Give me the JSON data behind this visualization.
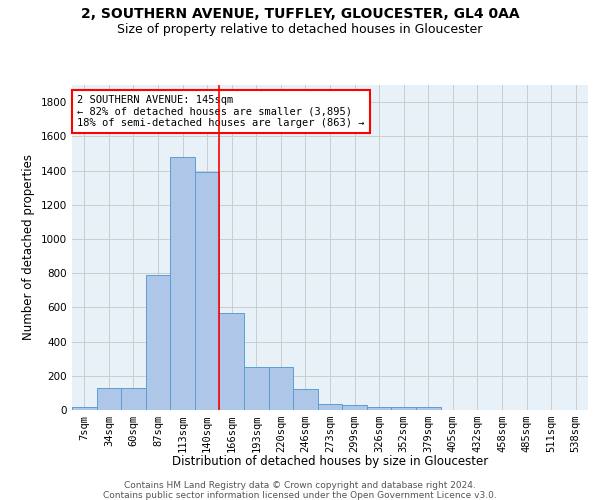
{
  "title1": "2, SOUTHERN AVENUE, TUFFLEY, GLOUCESTER, GL4 0AA",
  "title2": "Size of property relative to detached houses in Gloucester",
  "xlabel": "Distribution of detached houses by size in Gloucester",
  "ylabel": "Number of detached properties",
  "bar_values": [
    15,
    130,
    130,
    790,
    1480,
    1390,
    570,
    250,
    250,
    120,
    35,
    30,
    20,
    15,
    20,
    0,
    0,
    0,
    0,
    0,
    0
  ],
  "bar_labels": [
    "7sqm",
    "34sqm",
    "60sqm",
    "87sqm",
    "113sqm",
    "140sqm",
    "166sqm",
    "193sqm",
    "220sqm",
    "246sqm",
    "273sqm",
    "299sqm",
    "326sqm",
    "352sqm",
    "379sqm",
    "405sqm",
    "432sqm",
    "458sqm",
    "485sqm",
    "511sqm",
    "538sqm"
  ],
  "bar_color": "#aec6e8",
  "bar_edge_color": "#5a9fd4",
  "vline_x": 5.5,
  "vline_color": "red",
  "annotation_text": "2 SOUTHERN AVENUE: 145sqm\n← 82% of detached houses are smaller (3,895)\n18% of semi-detached houses are larger (863) →",
  "annotation_box_color": "white",
  "annotation_box_edge_color": "red",
  "ylim": [
    0,
    1900
  ],
  "yticks": [
    0,
    200,
    400,
    600,
    800,
    1000,
    1200,
    1400,
    1600,
    1800
  ],
  "grid_color": "#cccccc",
  "bg_color": "#e8f0f8",
  "footer1": "Contains HM Land Registry data © Crown copyright and database right 2024.",
  "footer2": "Contains public sector information licensed under the Open Government Licence v3.0.",
  "title1_fontsize": 10,
  "title2_fontsize": 9,
  "xlabel_fontsize": 8.5,
  "ylabel_fontsize": 8.5,
  "tick_fontsize": 7.5,
  "footer_fontsize": 6.5,
  "annotation_fontsize": 7.5
}
